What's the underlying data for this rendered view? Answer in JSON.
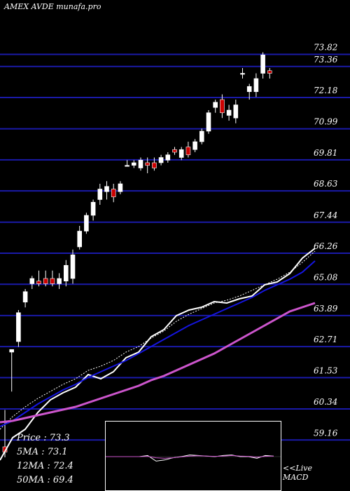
{
  "title": "AMEX  AVDE munafa.pro",
  "chart_data": {
    "type": "candlestick",
    "ylim": [
      57.5,
      76.5
    ],
    "y_ticks": [
      "73.82",
      "73.36",
      "72.18",
      "70.99",
      "69.81",
      "68.63",
      "67.44",
      "66.26",
      "65.08",
      "63.89",
      "62.71",
      "61.53",
      "60.34",
      "59.16"
    ],
    "candles": [
      {
        "o": 58.9,
        "h": 60.3,
        "l": 58.5,
        "c": 58.7
      },
      {
        "o": 62.5,
        "h": 62.6,
        "l": 61.0,
        "c": 62.6
      },
      {
        "o": 62.9,
        "h": 64.1,
        "l": 62.7,
        "c": 64.0
      },
      {
        "o": 64.4,
        "h": 64.9,
        "l": 64.2,
        "c": 64.8
      },
      {
        "o": 65.1,
        "h": 65.4,
        "l": 64.9,
        "c": 65.3
      },
      {
        "o": 65.2,
        "h": 65.6,
        "l": 65.0,
        "c": 65.1
      },
      {
        "o": 65.3,
        "h": 65.6,
        "l": 65.0,
        "c": 65.1
      },
      {
        "o": 65.3,
        "h": 65.6,
        "l": 65.0,
        "c": 65.1
      },
      {
        "o": 65.1,
        "h": 65.5,
        "l": 64.9,
        "c": 65.3
      },
      {
        "o": 65.2,
        "h": 66.0,
        "l": 65.0,
        "c": 65.8
      },
      {
        "o": 65.3,
        "h": 66.4,
        "l": 65.1,
        "c": 66.2
      },
      {
        "o": 66.5,
        "h": 67.3,
        "l": 66.4,
        "c": 67.1
      },
      {
        "o": 67.1,
        "h": 67.8,
        "l": 67.0,
        "c": 67.7
      },
      {
        "o": 67.7,
        "h": 68.3,
        "l": 67.5,
        "c": 68.2
      },
      {
        "o": 68.3,
        "h": 68.9,
        "l": 68.1,
        "c": 68.7
      },
      {
        "o": 68.6,
        "h": 69.0,
        "l": 68.3,
        "c": 68.8
      },
      {
        "o": 68.7,
        "h": 68.9,
        "l": 68.2,
        "c": 68.4
      },
      {
        "o": 68.6,
        "h": 69.0,
        "l": 68.5,
        "c": 68.9
      },
      {
        "o": 69.6,
        "h": 69.8,
        "l": 69.6,
        "c": 69.6
      },
      {
        "o": 69.6,
        "h": 69.8,
        "l": 69.5,
        "c": 69.7
      },
      {
        "o": 69.5,
        "h": 69.9,
        "l": 69.4,
        "c": 69.8
      },
      {
        "o": 69.7,
        "h": 69.9,
        "l": 69.3,
        "c": 69.6
      },
      {
        "o": 69.7,
        "h": 69.9,
        "l": 69.4,
        "c": 69.5
      },
      {
        "o": 69.7,
        "h": 70.0,
        "l": 69.6,
        "c": 69.9
      },
      {
        "o": 69.8,
        "h": 70.1,
        "l": 69.7,
        "c": 70.0
      },
      {
        "o": 70.2,
        "h": 70.3,
        "l": 70.0,
        "c": 70.1
      },
      {
        "o": 69.9,
        "h": 70.3,
        "l": 69.8,
        "c": 70.2
      },
      {
        "o": 70.3,
        "h": 70.5,
        "l": 69.9,
        "c": 70.0
      },
      {
        "o": 70.2,
        "h": 70.6,
        "l": 70.1,
        "c": 70.5
      },
      {
        "o": 70.5,
        "h": 71.0,
        "l": 70.4,
        "c": 70.9
      },
      {
        "o": 70.9,
        "h": 71.7,
        "l": 70.8,
        "c": 71.6
      },
      {
        "o": 71.8,
        "h": 72.1,
        "l": 71.6,
        "c": 72.0
      },
      {
        "o": 72.1,
        "h": 72.3,
        "l": 71.4,
        "c": 71.6
      },
      {
        "o": 71.5,
        "h": 71.9,
        "l": 71.3,
        "c": 71.7
      },
      {
        "o": 71.4,
        "h": 72.1,
        "l": 71.2,
        "c": 71.9
      },
      {
        "o": 73.1,
        "h": 73.3,
        "l": 72.9,
        "c": 73.1
      },
      {
        "o": 72.4,
        "h": 72.7,
        "l": 72.1,
        "c": 72.6
      },
      {
        "o": 72.4,
        "h": 73.1,
        "l": 72.2,
        "c": 72.9
      },
      {
        "o": 73.1,
        "h": 73.9,
        "l": 72.9,
        "c": 73.8
      },
      {
        "o": 73.2,
        "h": 73.3,
        "l": 72.9,
        "c": 73.1
      }
    ],
    "series": [
      {
        "values": [
          58.2,
          59.8,
          60.4,
          61.6,
          62.5,
          63.0,
          63.4,
          64.3,
          64.0,
          64.5,
          65.5,
          65.9,
          67.0,
          67.5,
          68.5,
          68.9,
          69.1,
          69.5,
          69.4,
          69.7,
          69.9,
          70.7,
          70.9,
          71.5,
          72.6,
          73.3
        ]
      },
      {
        "values": [
          60.4,
          61.3,
          62.0,
          62.6,
          63.1,
          63.6,
          64.0,
          64.6,
          64.9,
          65.3,
          65.9,
          66.3,
          66.9,
          67.4,
          68.1,
          68.6,
          69.0,
          69.4,
          69.6,
          69.9,
          70.3,
          70.7,
          71.1,
          71.6,
          72.3,
          73.1
        ]
      },
      {
        "values": [
          60.6,
          61.0,
          61.6,
          62.2,
          62.7,
          63.2,
          63.6,
          64.1,
          64.5,
          64.9,
          65.3,
          65.8,
          66.3,
          66.8,
          67.3,
          67.8,
          68.2,
          68.6,
          69.0,
          69.4,
          69.8,
          70.3,
          70.7,
          71.1,
          71.6,
          72.4
        ]
      },
      {
        "values": [
          60.9,
          61.0,
          61.2,
          61.4,
          61.6,
          61.8,
          62.0,
          62.3,
          62.6,
          62.9,
          63.2,
          63.5,
          63.9,
          64.2,
          64.6,
          65.0,
          65.4,
          65.8,
          66.3,
          66.8,
          67.3,
          67.8,
          68.3,
          68.8,
          69.1,
          69.4
        ]
      }
    ],
    "macd": [
      0.0,
      0.0,
      0.0,
      0.0,
      0.0,
      0.2,
      -0.8,
      -0.6,
      -0.2,
      0.0,
      0.3,
      0.2,
      0.1,
      0.0,
      0.2,
      0.3,
      0.0,
      0.0,
      -0.3,
      0.2,
      0.1
    ],
    "macd_signal": [
      0.0,
      0.0,
      0.0,
      0.0,
      0.0,
      0.05,
      -0.2,
      -0.3,
      -0.2,
      -0.05,
      0.1,
      0.15,
      0.1,
      0.05,
      0.1,
      0.2,
      0.1,
      0.05,
      -0.1,
      0.05,
      0.1
    ],
    "colors": {
      "up": "#ffffff",
      "down": "#cc0000",
      "grid": "#1a1aa8",
      "price": "#ffffff",
      "ma5": "#ffffff",
      "ma12": "#1515e0",
      "ma50": "#cc55cc"
    }
  },
  "stats": {
    "price": "Price   : 73.3",
    "ma5": "5MA : 73.1",
    "ma12": "12MA : 72.4",
    "ma50": "50MA : 69.4"
  },
  "macd_label": {
    "line1": "<<Live",
    "line2": "MACD"
  }
}
